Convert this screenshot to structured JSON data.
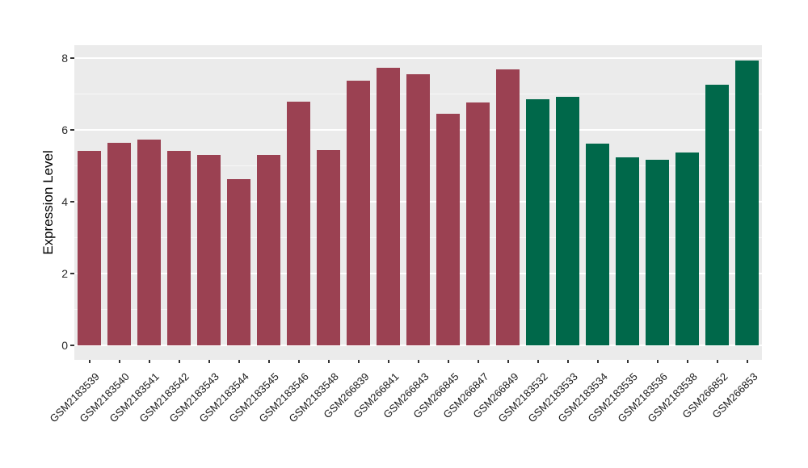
{
  "chart_data": {
    "type": "bar",
    "title": "",
    "xlabel": "",
    "ylabel": "Expression Level",
    "categories": [
      "GSM2183539",
      "GSM2183540",
      "GSM2183541",
      "GSM2183542",
      "GSM2183543",
      "GSM2183544",
      "GSM2183545",
      "GSM2183546",
      "GSM2183548",
      "GSM266839",
      "GSM266841",
      "GSM266843",
      "GSM266845",
      "GSM266847",
      "GSM266849",
      "GSM2183532",
      "GSM2183533",
      "GSM2183534",
      "GSM2183535",
      "GSM2183536",
      "GSM2183538",
      "GSM266852",
      "GSM266853"
    ],
    "values": [
      5.42,
      5.64,
      5.73,
      5.42,
      5.31,
      4.62,
      5.31,
      6.79,
      5.43,
      7.36,
      7.72,
      7.54,
      6.46,
      6.76,
      7.68,
      6.86,
      6.92,
      5.62,
      5.24,
      5.17,
      5.37,
      7.26,
      7.93
    ],
    "bar_color_split_index": 15,
    "colors": {
      "group_left_bars": "#9B4152",
      "group_right_bars": "#00684A",
      "panel_background": "#EBEBEB",
      "grid_major": "#FFFFFF",
      "axis_text": "#1a1a1a"
    },
    "yticks": [
      0,
      2,
      4,
      6,
      8
    ],
    "yticks_minor": [
      1,
      3,
      5,
      7
    ],
    "ylim": [
      -0.45,
      8.35
    ],
    "grid": true,
    "legend": false,
    "x_label_rotation_deg": 45
  }
}
